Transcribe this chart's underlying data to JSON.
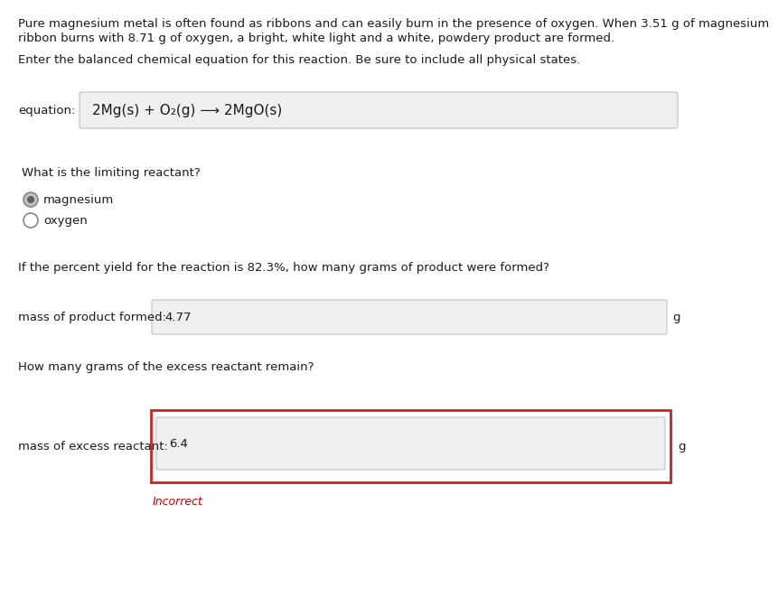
{
  "bg_color": "#ffffff",
  "text_color": "#1a1a1a",
  "paragraph1_line1": "Pure magnesium metal is often found as ribbons and can easily burn in the presence of oxygen. When 3.51 g of magnesium",
  "paragraph1_line2": "ribbon burns with 8.71 g of oxygen, a bright, white light and a white, powdery product are formed.",
  "paragraph2": "Enter the balanced chemical equation for this reaction. Be sure to include all physical states.",
  "equation_label": "equation:",
  "equation_text": "2Mg(s) + O₂(g) ⟶ 2MgO(s)",
  "limiting_q": "What is the limiting reactant?",
  "radio1_text": "magnesium",
  "radio1_selected": true,
  "radio2_text": "oxygen",
  "radio2_selected": false,
  "percent_yield_q": "If the percent yield for the reaction is 82.3%, how many grams of product were formed?",
  "mass_product_label": "mass of product formed:",
  "mass_product_value": "4.77",
  "excess_q": "How many grams of the excess reactant remain?",
  "mass_excess_label": "mass of excess reactant:",
  "mass_excess_value": "6.4",
  "incorrect_text": "Incorrect",
  "incorrect_color": "#cc0000",
  "box_bg": "#efefef",
  "box_border": "#cccccc",
  "inner_box_bg": "#e8e8e8",
  "error_border": "#cc2222",
  "unit_g": "g",
  "font_size_body": 9.5,
  "font_size_equation": 11,
  "font_size_small": 9
}
